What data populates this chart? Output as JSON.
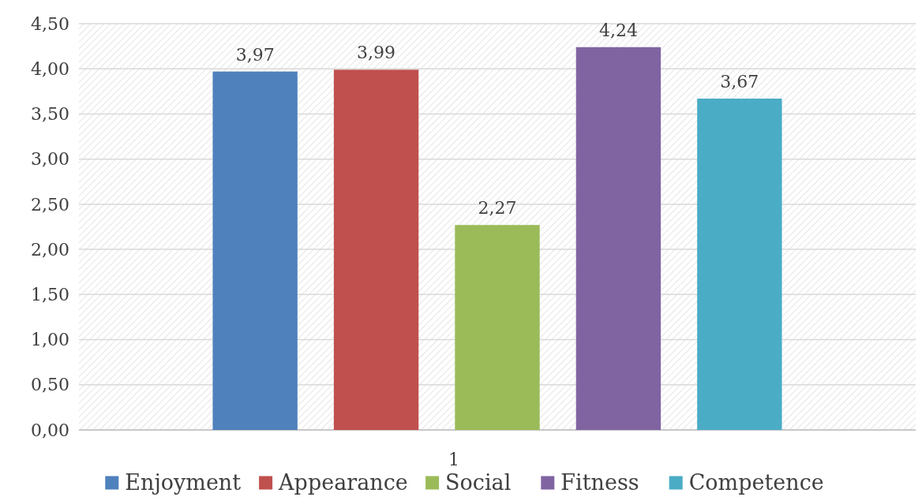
{
  "chart_data": {
    "type": "bar",
    "categories": [
      "1"
    ],
    "series": [
      {
        "name": "Enjoyment",
        "color": "#4f81bd",
        "values": [
          3.97
        ],
        "value_labels": [
          "3,97"
        ]
      },
      {
        "name": "Appearance",
        "color": "#c0504d",
        "values": [
          3.99
        ],
        "value_labels": [
          "3,99"
        ]
      },
      {
        "name": "Social",
        "color": "#9bbb59",
        "values": [
          2.27
        ],
        "value_labels": [
          "2,27"
        ]
      },
      {
        "name": "Fitness",
        "color": "#8064a2",
        "values": [
          4.24
        ],
        "value_labels": [
          "4,24"
        ]
      },
      {
        "name": "Competence",
        "color": "#4bacc6",
        "values": [
          3.67
        ],
        "value_labels": [
          "3,67"
        ]
      }
    ],
    "ylim": [
      0,
      4.5
    ],
    "yticks": [
      {
        "value": 0,
        "label": "0,00"
      },
      {
        "value": 0.5,
        "label": "0,50"
      },
      {
        "value": 1,
        "label": "1,00"
      },
      {
        "value": 1.5,
        "label": "1,50"
      },
      {
        "value": 2,
        "label": "2,00"
      },
      {
        "value": 2.5,
        "label": "2,50"
      },
      {
        "value": 3,
        "label": "3,00"
      },
      {
        "value": 3.5,
        "label": "3,50"
      },
      {
        "value": 4,
        "label": "4,00"
      },
      {
        "value": 4.5,
        "label": "4,50"
      }
    ],
    "grid": "y",
    "legend": "bottom"
  }
}
